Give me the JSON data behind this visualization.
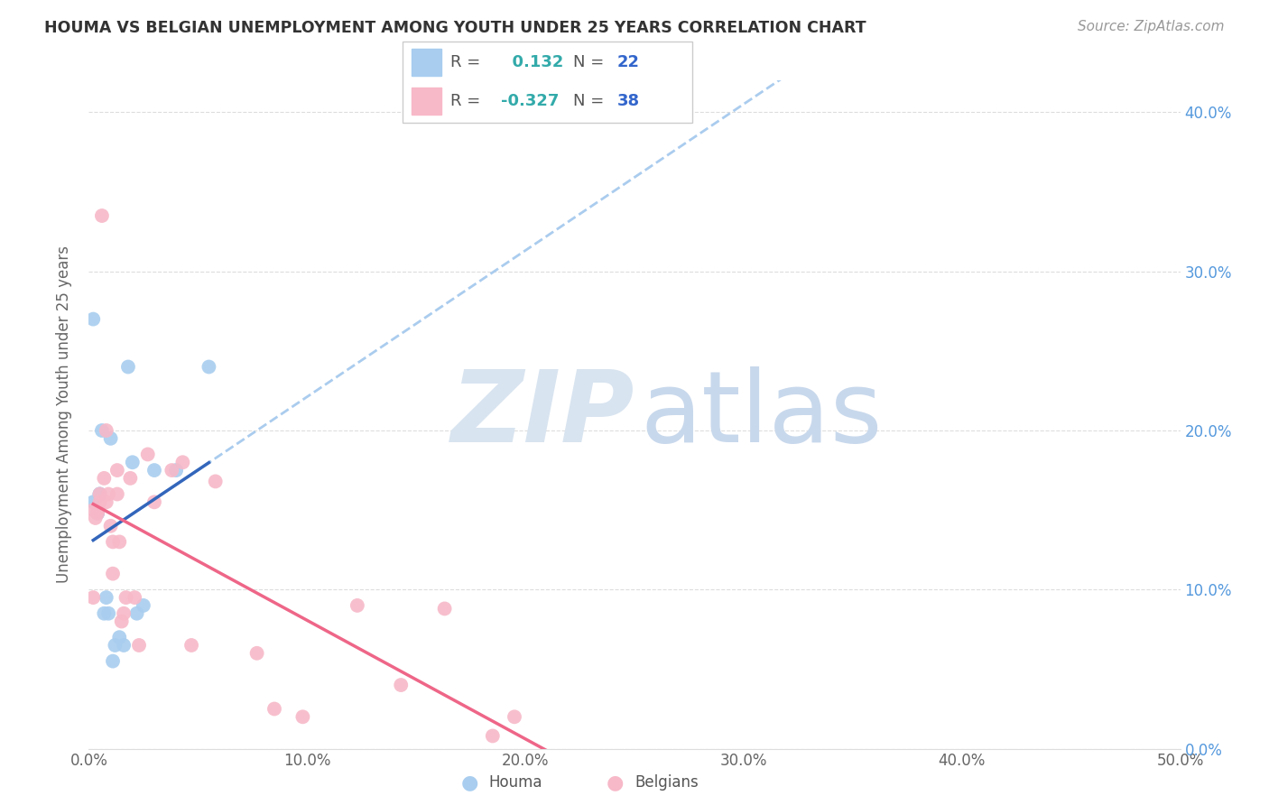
{
  "title": "HOUMA VS BELGIAN UNEMPLOYMENT AMONG YOUTH UNDER 25 YEARS CORRELATION CHART",
  "source": "Source: ZipAtlas.com",
  "ylabel": "Unemployment Among Youth under 25 years",
  "xlim": [
    0.0,
    0.5
  ],
  "ylim": [
    0.0,
    0.42
  ],
  "houma_R": 0.132,
  "houma_N": 22,
  "belgian_R": -0.327,
  "belgian_N": 38,
  "houma_color": "#A8CDEF",
  "belgian_color": "#F7B8C8",
  "houma_line_color": "#3366BB",
  "belgian_line_color": "#EE6688",
  "dashed_line_color": "#AACCEE",
  "background_color": "#FFFFFF",
  "houma_x": [
    0.002,
    0.002,
    0.004,
    0.004,
    0.005,
    0.005,
    0.006,
    0.007,
    0.008,
    0.009,
    0.01,
    0.011,
    0.012,
    0.014,
    0.016,
    0.018,
    0.02,
    0.022,
    0.025,
    0.03,
    0.04,
    0.055
  ],
  "houma_y": [
    0.155,
    0.27,
    0.148,
    0.148,
    0.16,
    0.16,
    0.2,
    0.085,
    0.095,
    0.085,
    0.195,
    0.055,
    0.065,
    0.07,
    0.065,
    0.24,
    0.18,
    0.085,
    0.09,
    0.175,
    0.175,
    0.24
  ],
  "belgian_x": [
    0.002,
    0.002,
    0.003,
    0.004,
    0.004,
    0.005,
    0.005,
    0.006,
    0.007,
    0.008,
    0.008,
    0.009,
    0.01,
    0.011,
    0.011,
    0.013,
    0.013,
    0.014,
    0.015,
    0.016,
    0.017,
    0.019,
    0.021,
    0.023,
    0.027,
    0.03,
    0.038,
    0.043,
    0.047,
    0.058,
    0.077,
    0.085,
    0.098,
    0.123,
    0.143,
    0.163,
    0.185,
    0.195
  ],
  "belgian_y": [
    0.15,
    0.095,
    0.145,
    0.15,
    0.148,
    0.16,
    0.155,
    0.335,
    0.17,
    0.155,
    0.2,
    0.16,
    0.14,
    0.11,
    0.13,
    0.16,
    0.175,
    0.13,
    0.08,
    0.085,
    0.095,
    0.17,
    0.095,
    0.065,
    0.185,
    0.155,
    0.175,
    0.18,
    0.065,
    0.168,
    0.06,
    0.025,
    0.02,
    0.09,
    0.04,
    0.088,
    0.008,
    0.02
  ]
}
